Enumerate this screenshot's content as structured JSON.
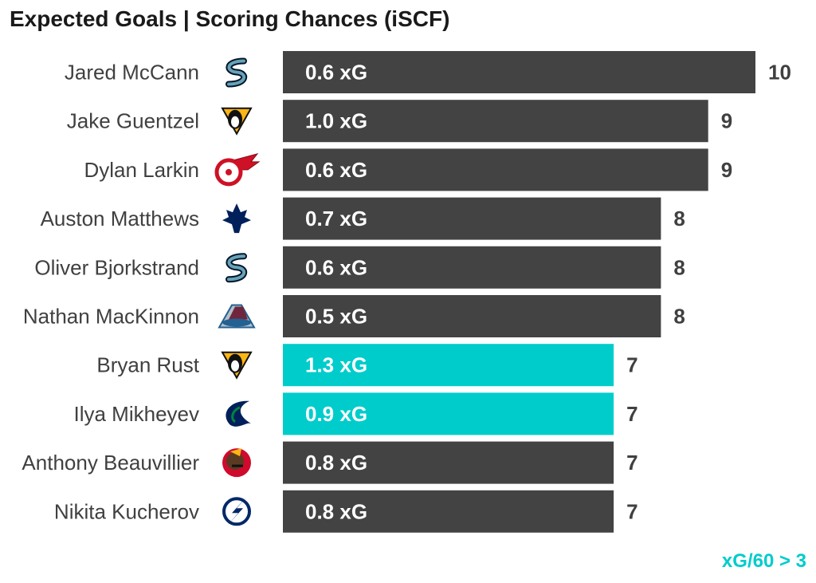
{
  "title": "Expected Goals | Scoring Chances (iSCF)",
  "footnote": "xG/60 > 3",
  "colors": {
    "default_bar": "#434343",
    "highlight_bar": "#00cccc",
    "bar_label": "#ffffff",
    "value_label": "#404040",
    "player_label": "#404040",
    "footnote": "#00cccc"
  },
  "chart_data": {
    "type": "bar",
    "orientation": "horizontal",
    "title": "Expected Goals | Scoring Chances (iSCF)",
    "xlim": [
      0,
      10
    ],
    "grid": false,
    "highlight_rule": "xG/60 > 3",
    "categories": [
      "Jared McCann",
      "Jake Guentzel",
      "Dylan Larkin",
      "Auston Matthews",
      "Oliver Bjorkstrand",
      "Nathan MacKinnon",
      "Bryan Rust",
      "Ilya Mikheyev",
      "Anthony Beauvillier",
      "Nikita Kucherov"
    ],
    "values": [
      10,
      9,
      9,
      8,
      8,
      8,
      7,
      7,
      7,
      7
    ],
    "bar_labels": [
      "0.6 xG",
      "1.0 xG",
      "0.6 xG",
      "0.7 xG",
      "0.6 xG",
      "0.5 xG",
      "1.3 xG",
      "0.9 xG",
      "0.8 xG",
      "0.8 xG"
    ],
    "highlighted": [
      false,
      false,
      false,
      false,
      false,
      false,
      true,
      true,
      false,
      false
    ],
    "team_logos": [
      "kraken-logo",
      "penguins-logo",
      "red-wings-logo",
      "maple-leafs-logo",
      "kraken-logo",
      "avalanche-logo",
      "penguins-logo",
      "canucks-logo",
      "blackhawks-logo",
      "lightning-logo"
    ]
  }
}
